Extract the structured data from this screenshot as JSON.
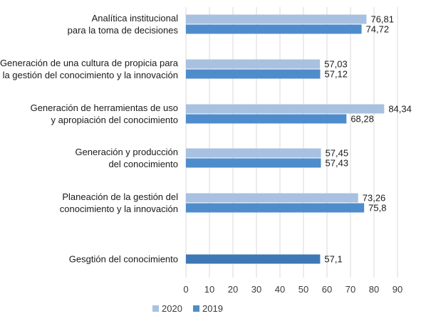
{
  "chart_data": {
    "type": "bar",
    "orientation": "horizontal",
    "title": "",
    "xlabel": "",
    "ylabel": "",
    "xlim": [
      0,
      90
    ],
    "x_ticks": [
      0,
      10,
      20,
      30,
      40,
      50,
      60,
      70,
      80,
      90
    ],
    "grid": "vertical",
    "legend_position": "bottom-left",
    "categories": [
      [
        "Analítica institucional",
        "para la toma de decisiones"
      ],
      [
        "Generación de una cultura de propicia para",
        "la gestión del conocimiento y la innovación"
      ],
      [
        "Generación de herramientas de uso",
        "y apropiación del conocimiento"
      ],
      [
        "Generación y producción",
        "del conocimiento"
      ],
      [
        "Planeación de la gestión del",
        "conocimiento y la innovación"
      ],
      [
        "Gesgtión del conocimiento"
      ]
    ],
    "series": [
      {
        "name": "2020",
        "color": "#a9c1e0",
        "values": [
          76.81,
          57.03,
          84.34,
          57.45,
          73.26,
          null
        ],
        "labels": [
          "76,81",
          "57,03",
          "84,34",
          "57,45",
          "73,26",
          ""
        ]
      },
      {
        "name": "2019",
        "color": "#4f8ccc",
        "values": [
          74.72,
          57.12,
          68.28,
          57.43,
          75.8,
          57.1
        ],
        "labels": [
          "74,72",
          "57,12",
          "68,28",
          "57,43",
          "75,8",
          "57,1"
        ]
      }
    ],
    "highlight_color": "#3e78b5"
  }
}
